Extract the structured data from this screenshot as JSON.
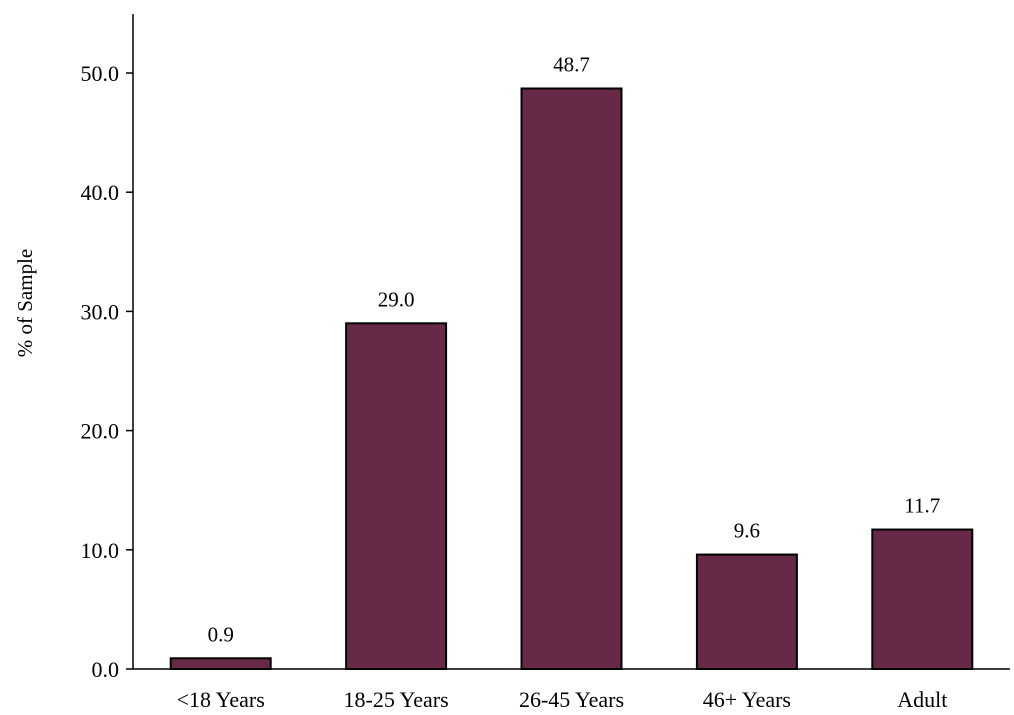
{
  "chart_data": {
    "type": "bar",
    "categories": [
      "<18 Years",
      "18-25 Years",
      "26-45 Years",
      "46+ Years",
      "Adult"
    ],
    "values": [
      0.9,
      29.0,
      48.7,
      9.6,
      11.7
    ],
    "value_labels": [
      "0.9",
      "29.0",
      "48.7",
      "9.6",
      "11.7"
    ],
    "ylabel": "% of Sample",
    "xlabel": "",
    "title": "",
    "ylim": [
      0,
      50
    ],
    "yticks": [
      "0.0",
      "10.0",
      "20.0",
      "30.0",
      "40.0",
      "50.0"
    ],
    "grid": false,
    "legend": "none",
    "bar_color": "#662a48",
    "bar_edge_color": "#000000"
  }
}
